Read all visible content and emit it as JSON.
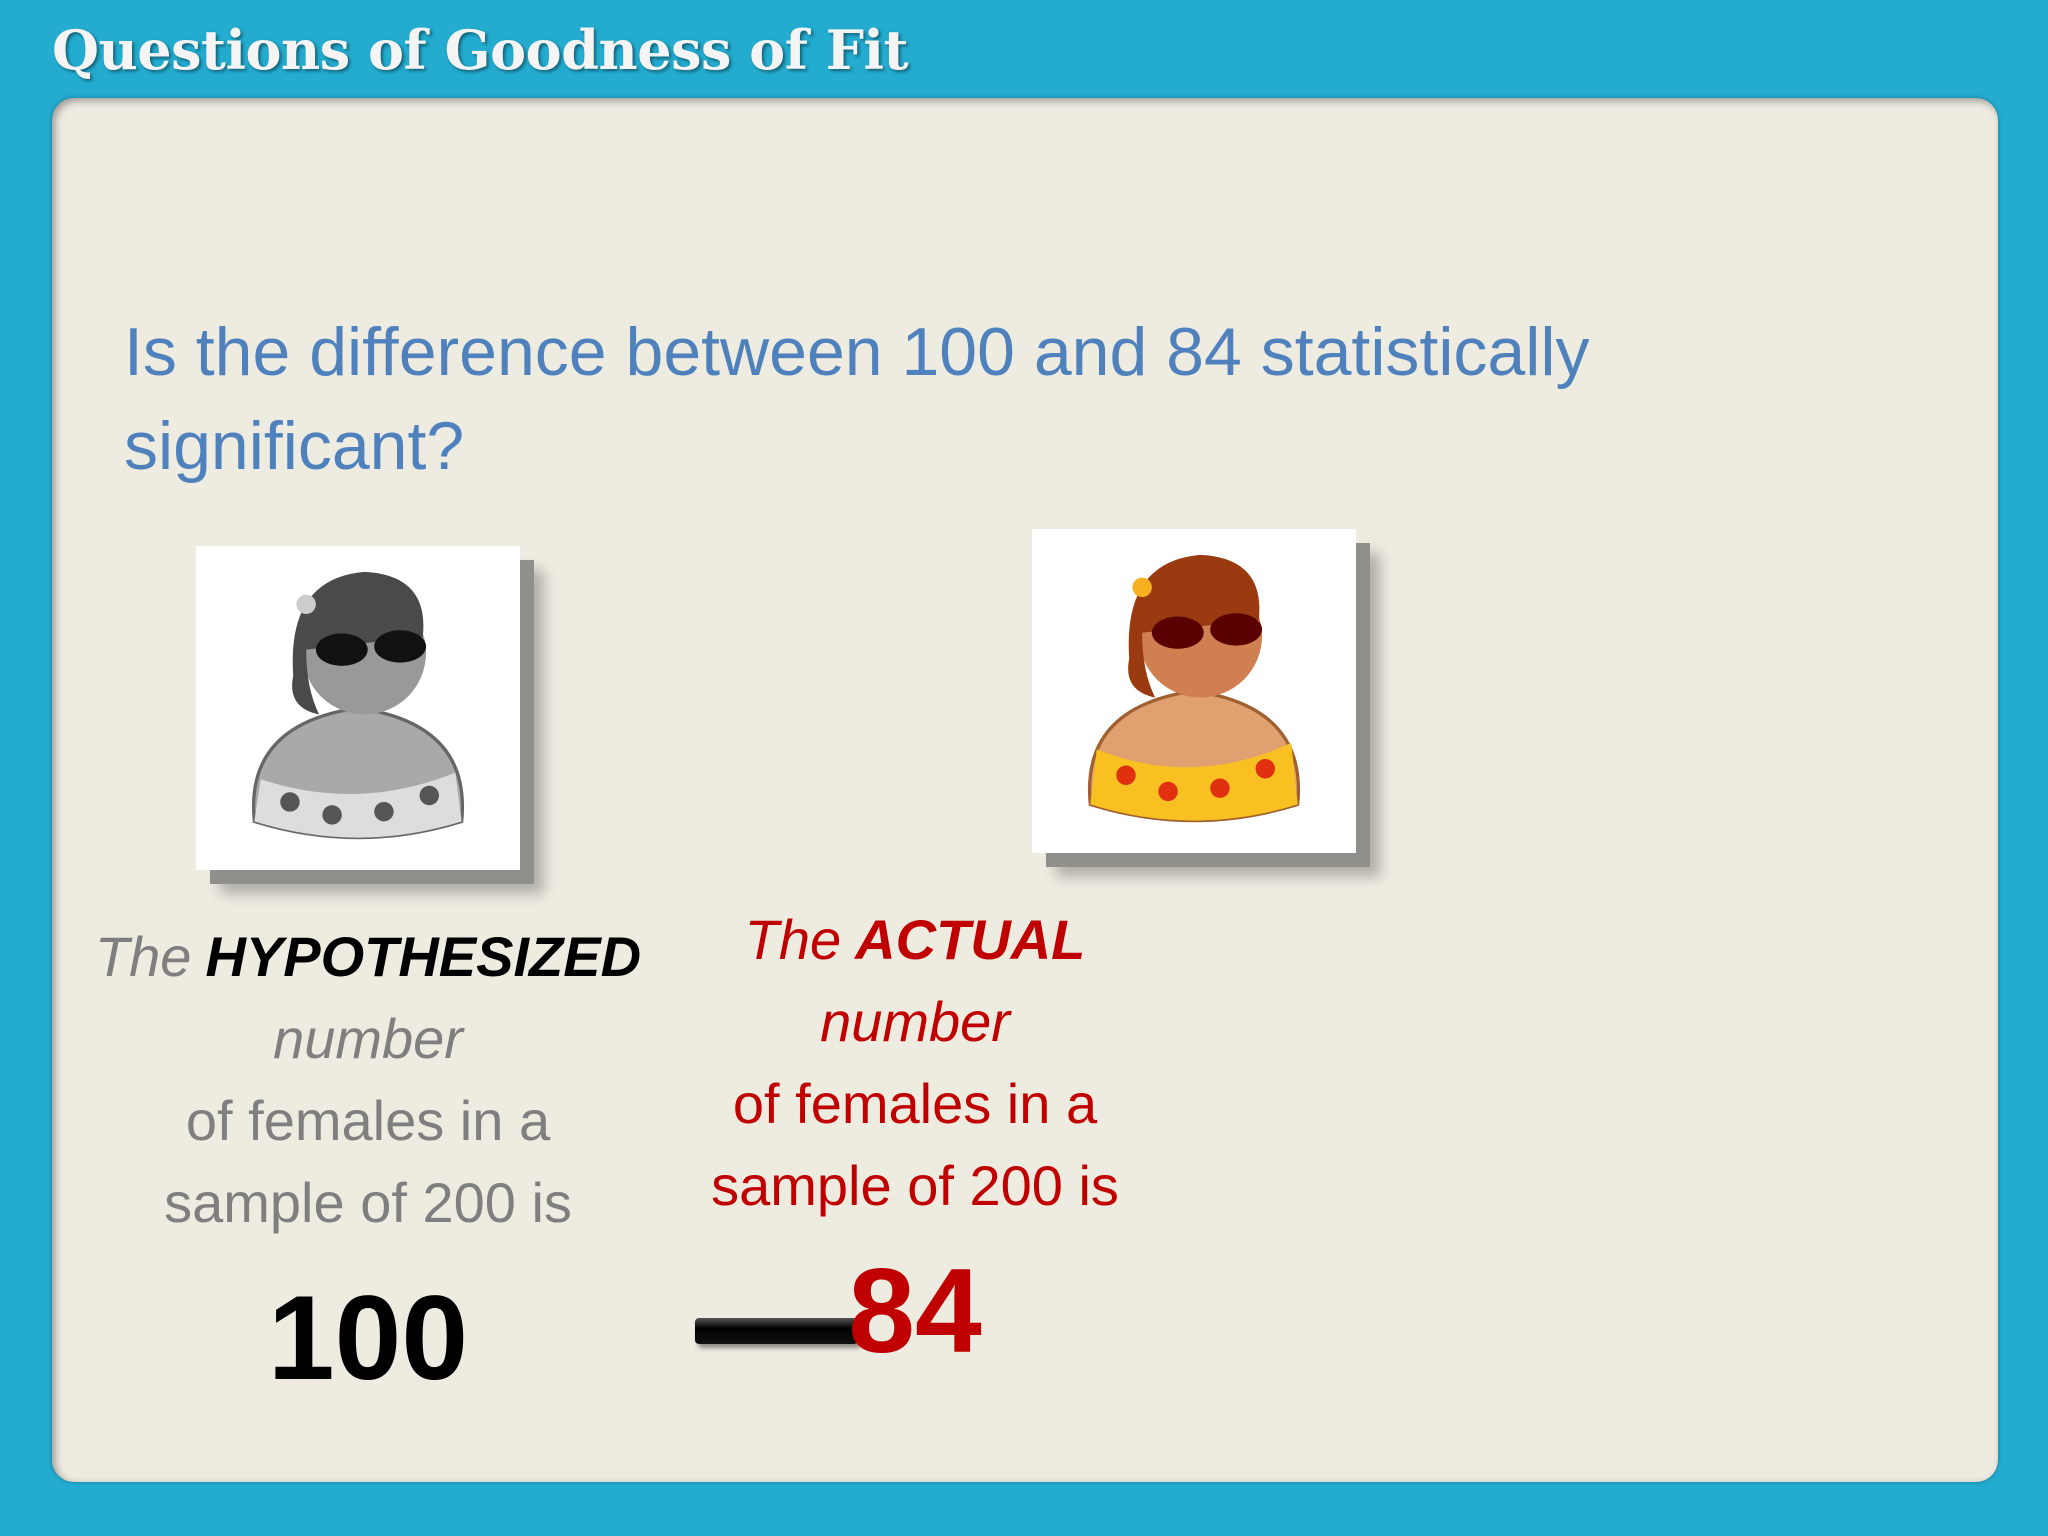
{
  "header": {
    "title": "Questions of Goodness of Fit"
  },
  "question": "Is the difference between 100 and 84 statistically significant?",
  "hypothesized": {
    "lead": "The",
    "emphasis": "HYPOTHESIZED",
    "line2": "number",
    "line3": "of females in a",
    "line4": "sample of 200 is",
    "value": 100
  },
  "actual": {
    "lead": "The",
    "emphasis": "ACTUAL",
    "line2": "number",
    "line3": "of females in a",
    "line4": "sample of 200 is",
    "value": 84
  }
}
